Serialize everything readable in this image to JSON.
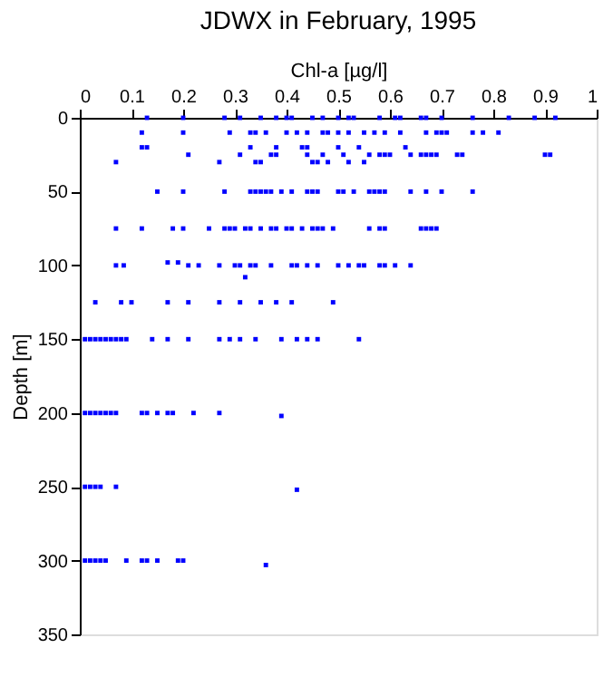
{
  "chart_data": {
    "type": "scatter",
    "title": "JDWX in February, 1995",
    "xlabel": "Chl-a [µg/l]",
    "ylabel": "Depth [m]",
    "marker": "square",
    "grid": false,
    "xlim": [
      0,
      1
    ],
    "xticks": [
      0,
      0.1,
      0.2,
      0.3,
      0.4,
      0.5,
      0.6,
      0.7,
      0.8,
      0.9,
      1
    ],
    "ylim": [
      350,
      0
    ],
    "yticks": [
      0,
      50,
      100,
      150,
      200,
      250,
      300,
      350
    ],
    "series": [
      {
        "color": "#0000ff",
        "x": [
          0.13,
          0.2,
          0.28,
          0.31,
          0.35,
          0.38,
          0.4,
          0.41,
          0.45,
          0.47,
          0.5,
          0.52,
          0.53,
          0.58,
          0.61,
          0.62,
          0.66,
          0.67,
          0.7,
          0.76,
          0.83,
          0.88,
          0.92,
          0.12,
          0.2,
          0.29,
          0.33,
          0.34,
          0.36,
          0.4,
          0.42,
          0.44,
          0.47,
          0.48,
          0.5,
          0.52,
          0.55,
          0.57,
          0.59,
          0.62,
          0.67,
          0.69,
          0.7,
          0.71,
          0.76,
          0.78,
          0.81,
          0.12,
          0.13,
          0.33,
          0.38,
          0.43,
          0.44,
          0.5,
          0.54,
          0.63,
          0.21,
          0.31,
          0.37,
          0.38,
          0.44,
          0.47,
          0.51,
          0.56,
          0.58,
          0.59,
          0.6,
          0.64,
          0.66,
          0.67,
          0.68,
          0.69,
          0.73,
          0.74,
          0.9,
          0.91,
          0.07,
          0.27,
          0.34,
          0.35,
          0.45,
          0.46,
          0.48,
          0.52,
          0.55,
          0.15,
          0.2,
          0.28,
          0.33,
          0.34,
          0.35,
          0.36,
          0.37,
          0.39,
          0.41,
          0.44,
          0.45,
          0.46,
          0.5,
          0.51,
          0.53,
          0.56,
          0.57,
          0.58,
          0.59,
          0.64,
          0.67,
          0.7,
          0.76,
          0.07,
          0.12,
          0.18,
          0.2,
          0.25,
          0.28,
          0.29,
          0.3,
          0.32,
          0.33,
          0.35,
          0.37,
          0.38,
          0.4,
          0.41,
          0.43,
          0.45,
          0.46,
          0.47,
          0.49,
          0.56,
          0.58,
          0.59,
          0.66,
          0.67,
          0.68,
          0.69,
          0.07,
          0.085,
          0.17,
          0.19,
          0.21,
          0.23,
          0.27,
          0.3,
          0.31,
          0.33,
          0.34,
          0.37,
          0.41,
          0.42,
          0.44,
          0.46,
          0.5,
          0.52,
          0.54,
          0.55,
          0.58,
          0.59,
          0.61,
          0.64,
          0.32,
          0.03,
          0.08,
          0.1,
          0.17,
          0.21,
          0.27,
          0.31,
          0.35,
          0.38,
          0.41,
          0.49,
          0.01,
          0.02,
          0.03,
          0.04,
          0.05,
          0.06,
          0.07,
          0.08,
          0.09,
          0.14,
          0.17,
          0.21,
          0.27,
          0.29,
          0.31,
          0.34,
          0.39,
          0.42,
          0.44,
          0.46,
          0.54,
          0.01,
          0.02,
          0.03,
          0.04,
          0.05,
          0.06,
          0.07,
          0.12,
          0.13,
          0.15,
          0.17,
          0.18,
          0.22,
          0.27,
          0.39,
          0.01,
          0.02,
          0.03,
          0.04,
          0.07,
          0.42,
          0.01,
          0.02,
          0.03,
          0.04,
          0.05,
          0.09,
          0.12,
          0.13,
          0.15,
          0.19,
          0.2,
          0.36
        ],
        "values": [
          0,
          0,
          0,
          0,
          0,
          0,
          0,
          0,
          0,
          0,
          0,
          0,
          0,
          0,
          0,
          0,
          0,
          0,
          0,
          0,
          0,
          0,
          0,
          10,
          10,
          10,
          10,
          10,
          10,
          10,
          10,
          10,
          10,
          10,
          10,
          10,
          10,
          10,
          10,
          10,
          10,
          10,
          10,
          10,
          10,
          10,
          10,
          20,
          20,
          20,
          20,
          20,
          20,
          20,
          20,
          20,
          25,
          25,
          25,
          25,
          25,
          25,
          25,
          25,
          25,
          25,
          25,
          25,
          25,
          25,
          25,
          25,
          25,
          25,
          25,
          25,
          30,
          30,
          30,
          30,
          30,
          30,
          30,
          30,
          30,
          50,
          50,
          50,
          50,
          50,
          50,
          50,
          50,
          50,
          50,
          50,
          50,
          50,
          50,
          50,
          50,
          50,
          50,
          50,
          50,
          50,
          50,
          50,
          50,
          75,
          75,
          75,
          75,
          75,
          75,
          75,
          75,
          75,
          75,
          75,
          75,
          75,
          75,
          75,
          75,
          75,
          75,
          75,
          75,
          75,
          75,
          75,
          75,
          75,
          75,
          75,
          100,
          100,
          98,
          98,
          100,
          100,
          100,
          100,
          100,
          100,
          100,
          100,
          100,
          100,
          100,
          100,
          100,
          100,
          100,
          100,
          100,
          100,
          100,
          100,
          108,
          125,
          125,
          125,
          125,
          125,
          125,
          125,
          125,
          125,
          125,
          125,
          150,
          150,
          150,
          150,
          150,
          150,
          150,
          150,
          150,
          150,
          150,
          150,
          150,
          150,
          150,
          150,
          150,
          150,
          150,
          150,
          150,
          200,
          200,
          200,
          200,
          200,
          200,
          200,
          200,
          200,
          200,
          200,
          200,
          200,
          200,
          202,
          250,
          250,
          250,
          250,
          250,
          252,
          300,
          300,
          300,
          300,
          300,
          300,
          300,
          300,
          300,
          300,
          300,
          303
        ]
      }
    ]
  }
}
